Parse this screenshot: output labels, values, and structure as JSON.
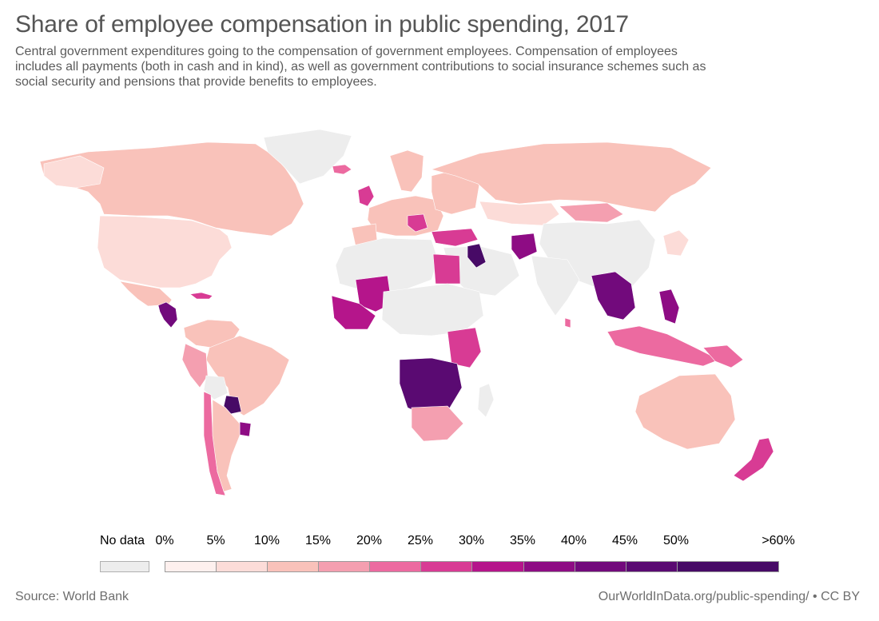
{
  "title": "Share of employee compensation in public spending, 2017",
  "subtitle": "Central government expenditures going to the compensation of government employees. Compensation of employees includes all payments (both in cash and in kind), as well as government contributions to social insurance schemes such as social security and pensions that provide benefits to employees.",
  "legend": {
    "no_data_label": "No data",
    "no_data_color": "#ededed",
    "tick_labels": [
      "0%",
      "5%",
      "10%",
      "15%",
      "20%",
      "25%",
      "30%",
      "35%",
      "40%",
      "45%",
      "50%",
      ">60%"
    ],
    "bins": [
      {
        "range": "0-5%",
        "color": "#fef0ee"
      },
      {
        "range": "5-10%",
        "color": "#fcdcd8"
      },
      {
        "range": "10-15%",
        "color": "#f9c2ba"
      },
      {
        "range": "15-20%",
        "color": "#f49fb0"
      },
      {
        "range": "20-25%",
        "color": "#ec6aa0"
      },
      {
        "range": "25-30%",
        "color": "#d83b94"
      },
      {
        "range": "30-35%",
        "color": "#b5158b"
      },
      {
        "range": "35-40%",
        "color": "#8e0c84"
      },
      {
        "range": "40-45%",
        "color": "#720a7c"
      },
      {
        "range": "45-50%",
        "color": "#5a0a72"
      },
      {
        "range": "50-60%",
        "color": "#470a66"
      }
    ]
  },
  "footer": {
    "source": "Source: World Bank",
    "url": "OurWorldInData.org/public-spending/ • CC BY"
  }
}
